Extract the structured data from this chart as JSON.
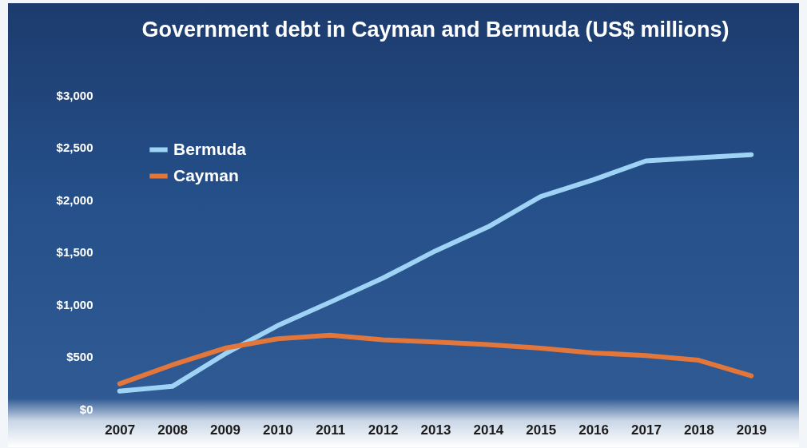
{
  "chart_data": {
    "type": "line",
    "title": "Government debt in Cayman and Bermuda (US$ millions)",
    "categories": [
      "2007",
      "2008",
      "2009",
      "2010",
      "2011",
      "2012",
      "2013",
      "2014",
      "2015",
      "2016",
      "2017",
      "2018",
      "2019"
    ],
    "series": [
      {
        "name": "Bermuda",
        "color": "#9fd3f5",
        "values": [
          170,
          215,
          525,
          795,
          1020,
          1250,
          1510,
          1740,
          2030,
          2190,
          2370,
          2400,
          2430
        ]
      },
      {
        "name": "Cayman",
        "color": "#e3763a",
        "values": [
          240,
          420,
          580,
          670,
          705,
          660,
          640,
          615,
          580,
          535,
          510,
          465,
          315
        ]
      }
    ],
    "ylim": [
      0,
      3000
    ],
    "yticks": [
      {
        "value": 0,
        "label": "$0"
      },
      {
        "value": 500,
        "label": "$500"
      },
      {
        "value": 1000,
        "label": "$1,000"
      },
      {
        "value": 1500,
        "label": "$1,500"
      },
      {
        "value": 2000,
        "label": "$2,000"
      },
      {
        "value": 2500,
        "label": "$2,500"
      },
      {
        "value": 3000,
        "label": "$3,000"
      }
    ],
    "grid": false,
    "legend": "top left",
    "marker": "none",
    "line_style": "solid"
  }
}
